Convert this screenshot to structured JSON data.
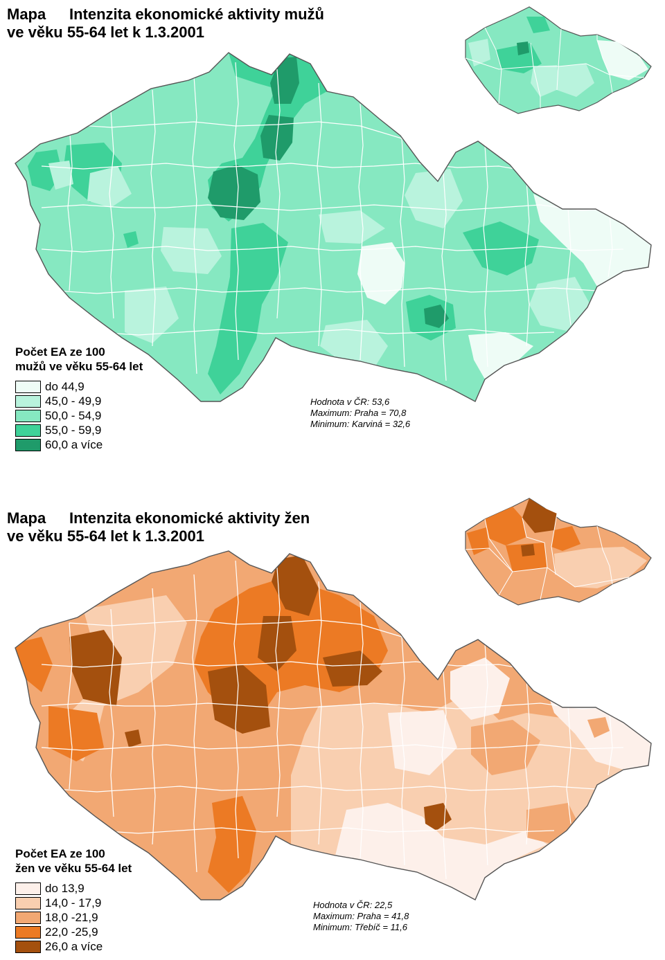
{
  "maps": [
    {
      "title_prefix": "Mapa",
      "title_line1": "Intenzita ekonomické aktivity mužů",
      "title_line2": "ve věku 55-64 let k 1.3.2001",
      "legend": {
        "title_line1": "Počet EA ze 100",
        "title_line2": "mužů ve věku 55-64 let",
        "classes": [
          {
            "label": "do  44,9",
            "color": "#eefcf6"
          },
          {
            "label": "45,0 - 49,9",
            "color": "#b9f3dd"
          },
          {
            "label": "50,0 - 54,9",
            "color": "#86e8c1"
          },
          {
            "label": "55,0 - 59,9",
            "color": "#3fd299"
          },
          {
            "label": "60,0  a více",
            "color": "#1f9b6a"
          }
        ]
      },
      "stats": [
        "Hodnota v ČR: 53,6",
        "Maximum: Praha = 70,8",
        "Minimum: Karviná = 32,6"
      ]
    },
    {
      "title_prefix": "Mapa",
      "title_line1": "Intenzita ekonomické aktivity žen",
      "title_line2": "ve věku 55-64 let k 1.3.2001",
      "legend": {
        "title_line1": "Počet EA ze 100",
        "title_line2": "žen ve věku 55-64 let",
        "classes": [
          {
            "label": "do  13,9",
            "color": "#fdf0ea"
          },
          {
            "label": "14,0 - 17,9",
            "color": "#f9cfb0"
          },
          {
            "label": "18,0 -21,9",
            "color": "#f2a873"
          },
          {
            "label": "22,0 -25,9",
            "color": "#ec7a24"
          },
          {
            "label": "26,0  a více",
            "color": "#a4500e"
          }
        ]
      },
      "stats": [
        "Hodnota v ČR: 22,5",
        "Maximum: Praha = 41,8",
        "Minimum: Třebíč = 11,6"
      ]
    }
  ]
}
